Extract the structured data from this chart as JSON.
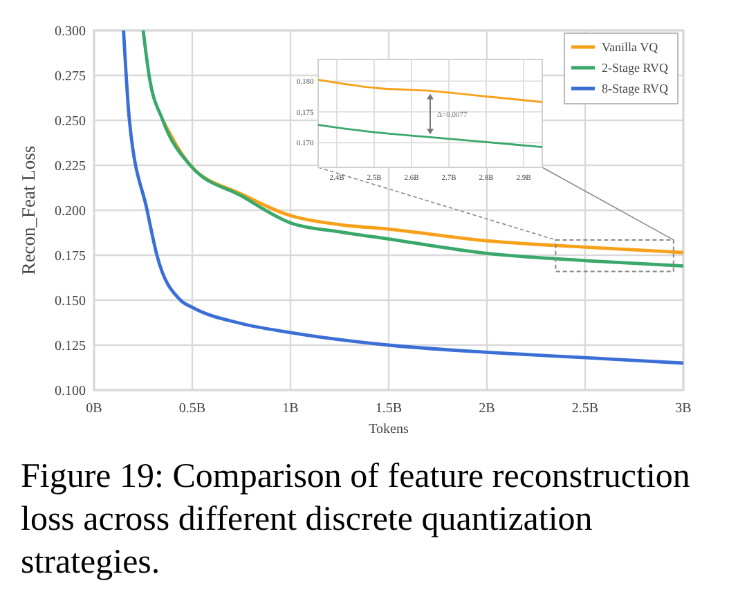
{
  "chart_data": [
    {
      "type": "line",
      "xlabel": "Tokens",
      "ylabel": "Recon_Feat Loss",
      "xlim": [
        0,
        3
      ],
      "ylim": [
        0.1,
        0.3
      ],
      "xticks": [
        {
          "value": 0,
          "label": "0B"
        },
        {
          "value": 0.5,
          "label": "0.5B"
        },
        {
          "value": 1,
          "label": "1B"
        },
        {
          "value": 1.5,
          "label": "1.5B"
        },
        {
          "value": 2,
          "label": "2B"
        },
        {
          "value": 2.5,
          "label": "2.5B"
        },
        {
          "value": 3,
          "label": "3B"
        }
      ],
      "yticks": [
        {
          "value": 0.1,
          "label": "0.100"
        },
        {
          "value": 0.125,
          "label": "0.125"
        },
        {
          "value": 0.15,
          "label": "0.150"
        },
        {
          "value": 0.175,
          "label": "0.175"
        },
        {
          "value": 0.2,
          "label": "0.200"
        },
        {
          "value": 0.225,
          "label": "0.225"
        },
        {
          "value": 0.25,
          "label": "0.250"
        },
        {
          "value": 0.275,
          "label": "0.275"
        },
        {
          "value": 0.3,
          "label": "0.300"
        }
      ],
      "grid": true,
      "legend": "top right",
      "line_style": "solid",
      "marker": "none",
      "series": [
        {
          "name": "Vanilla VQ",
          "color": "#f7a11a",
          "x": [
            0.35,
            0.49,
            0.75,
            1,
            1.25,
            1.5,
            2,
            2.5,
            3
          ],
          "values": [
            0.25,
            0.225,
            0.209,
            0.197,
            0.192,
            0.1895,
            0.183,
            0.1795,
            0.1765
          ]
        },
        {
          "name": "2-Stage RVQ",
          "color": "#3aa86b",
          "x": [
            0.25,
            0.28,
            0.35,
            0.49,
            0.75,
            1,
            1.25,
            1.5,
            2,
            2.5,
            3
          ],
          "values": [
            0.3,
            0.275,
            0.25,
            0.225,
            0.208,
            0.193,
            0.188,
            0.184,
            0.176,
            0.172,
            0.169
          ]
        },
        {
          "name": "8-Stage RVQ",
          "color": "#3b6fd6",
          "x": [
            0.15,
            0.18,
            0.27,
            0.32,
            0.44,
            0.5,
            0.75,
            1,
            1.5,
            2,
            2.5,
            3
          ],
          "values": [
            0.3,
            0.25,
            0.2,
            0.175,
            0.15,
            0.146,
            0.137,
            0.132,
            0.125,
            0.121,
            0.118,
            0.115
          ]
        }
      ],
      "annotations": [
        "Figure 19: Comparison of feature reconstruction loss across different discrete quantization strategies."
      ]
    },
    {
      "type": "line",
      "xlim": [
        2.35,
        2.95
      ],
      "ylim": [
        0.166,
        0.1835
      ],
      "xticks": [
        {
          "value": 2.4,
          "label": "2.4B"
        },
        {
          "value": 2.5,
          "label": "2.5B"
        },
        {
          "value": 2.6,
          "label": "2.6B"
        },
        {
          "value": 2.7,
          "label": "2.7B"
        },
        {
          "value": 2.8,
          "label": "2.8B"
        },
        {
          "value": 2.9,
          "label": "2.9B"
        }
      ],
      "yticks": [
        {
          "value": 0.17,
          "label": "0.170"
        },
        {
          "value": 0.175,
          "label": "0.175"
        },
        {
          "value": 0.18,
          "label": "0.180"
        }
      ],
      "grid": true,
      "line_style": "solid",
      "marker": "none",
      "series": [
        {
          "color": "#f7a11a",
          "x": [
            2.35,
            2.5,
            2.65,
            2.8,
            2.95
          ],
          "values": [
            0.1802,
            0.1789,
            0.1784,
            0.1775,
            0.1766
          ]
        },
        {
          "color": "#3aa86b",
          "x": [
            2.35,
            2.5,
            2.65,
            2.8,
            2.95
          ],
          "values": [
            0.1729,
            0.1717,
            0.1709,
            0.1701,
            0.1693
          ]
        }
      ],
      "annotations": [
        "Δ=0.0077"
      ]
    }
  ]
}
